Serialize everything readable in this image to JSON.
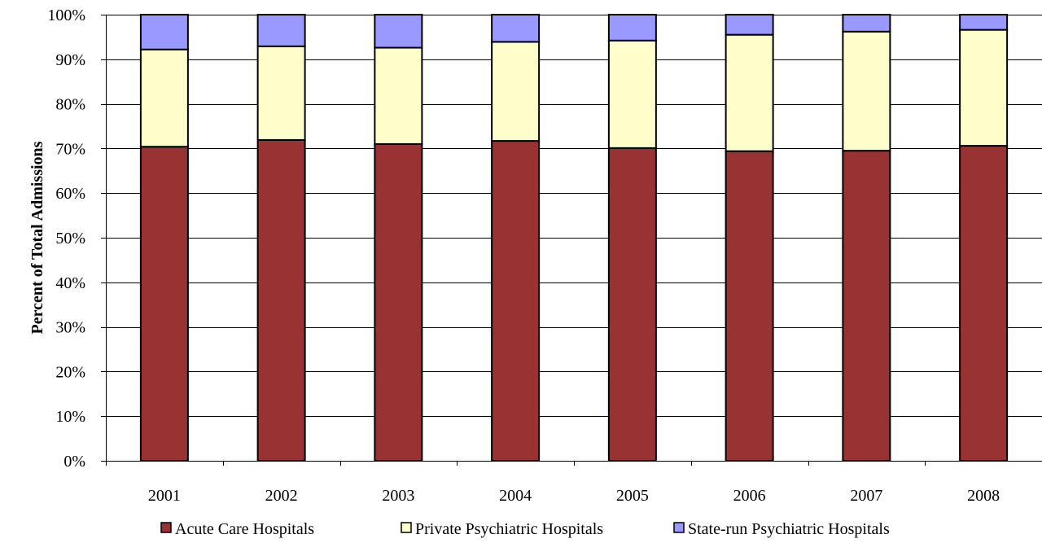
{
  "chart_data": {
    "type": "bar",
    "stacked": true,
    "percent_stacked": true,
    "title": "",
    "xlabel": "",
    "ylabel": "Percent of Total Admissions",
    "categories": [
      "2001",
      "2002",
      "2003",
      "2004",
      "2005",
      "2006",
      "2007",
      "2008"
    ],
    "ylim": [
      0,
      100
    ],
    "yticks": [
      0,
      10,
      20,
      30,
      40,
      50,
      60,
      70,
      80,
      90,
      100
    ],
    "ytick_labels": [
      "0%",
      "10%",
      "20%",
      "30%",
      "40%",
      "50%",
      "60%",
      "70%",
      "80%",
      "90%",
      "100%"
    ],
    "grid": true,
    "legend_position": "bottom",
    "series": [
      {
        "name": "Acute Care Hospitals",
        "color": "#993333",
        "values": [
          70.4,
          71.9,
          71.0,
          71.7,
          70.1,
          69.4,
          69.5,
          70.6
        ]
      },
      {
        "name": "Private Psychiatric Hospitals",
        "color": "#FFFFCC",
        "values": [
          21.8,
          21.0,
          21.6,
          22.2,
          24.1,
          26.1,
          26.7,
          26.0
        ]
      },
      {
        "name": "State-run Psychiatric Hospitals",
        "color": "#9999FF",
        "values": [
          7.8,
          7.1,
          7.4,
          6.1,
          5.8,
          4.5,
          3.8,
          3.4
        ]
      }
    ]
  }
}
